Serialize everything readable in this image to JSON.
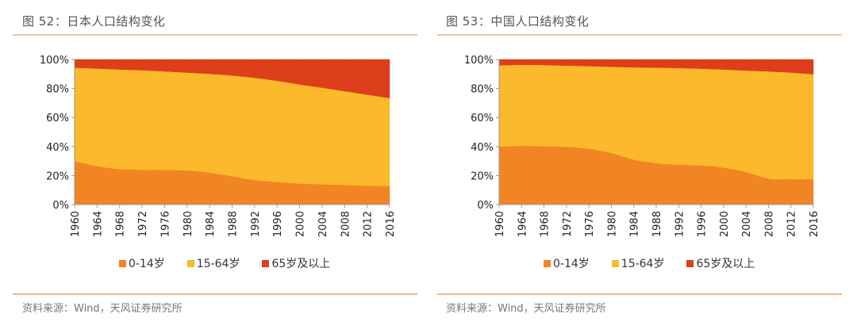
{
  "panels": [
    {
      "title": "图 52：日本人口结构变化",
      "source": "资料来源：Wind，天风证券研究所",
      "legend": [
        {
          "label": "0-14岁",
          "color": "#f18523"
        },
        {
          "label": "15-64岁",
          "color": "#fbb92b"
        },
        {
          "label": "65岁及以上",
          "color": "#dc3f1a"
        }
      ]
    },
    {
      "title": "图 53：中国人口结构变化",
      "source": "资料来源：Wind，天风证券研究所",
      "legend": [
        {
          "label": "0-14岁",
          "color": "#f18523"
        },
        {
          "label": "15-64岁",
          "color": "#fbb92b"
        },
        {
          "label": "65岁及以上",
          "color": "#dc3f1a"
        }
      ]
    }
  ],
  "chart_data": [
    {
      "type": "area",
      "stacked": true,
      "normalized": true,
      "title": "图 52：日本人口结构变化",
      "xlabel": "",
      "ylabel": "",
      "ylim": [
        0,
        100
      ],
      "yticks": [
        "0%",
        "20%",
        "40%",
        "60%",
        "80%",
        "100%"
      ],
      "x": [
        1960,
        1964,
        1968,
        1972,
        1976,
        1980,
        1984,
        1988,
        1992,
        1996,
        2000,
        2004,
        2008,
        2012,
        2016
      ],
      "legend_position": "bottom",
      "grid": false,
      "series": [
        {
          "name": "0-14岁",
          "color": "#f18523",
          "values": [
            30,
            26.5,
            24.5,
            24,
            24,
            23.5,
            22,
            19.5,
            17,
            15.5,
            14.5,
            14,
            13.5,
            13,
            12.8
          ]
        },
        {
          "name": "15-64岁",
          "color": "#fbb92b",
          "values": [
            64.3,
            67.3,
            68.6,
            68.6,
            67.8,
            67.5,
            68.1,
            69.5,
            70.4,
            69.8,
            68.3,
            66.6,
            64.7,
            62.8,
            60.6
          ]
        },
        {
          "name": "65岁及以上",
          "color": "#dc3f1a",
          "values": [
            5.7,
            6.2,
            6.9,
            7.4,
            8.2,
            9.0,
            9.9,
            11.0,
            12.6,
            14.7,
            17.2,
            19.4,
            21.8,
            24.2,
            26.6
          ]
        }
      ]
    },
    {
      "type": "area",
      "stacked": true,
      "normalized": true,
      "title": "图 53：中国人口结构变化",
      "xlabel": "",
      "ylabel": "",
      "ylim": [
        0,
        100
      ],
      "yticks": [
        "0%",
        "20%",
        "40%",
        "60%",
        "80%",
        "100%"
      ],
      "x": [
        1960,
        1964,
        1968,
        1972,
        1976,
        1980,
        1984,
        1988,
        1992,
        1996,
        2000,
        2004,
        2008,
        2012,
        2016
      ],
      "legend_position": "bottom",
      "grid": false,
      "series": [
        {
          "name": "0-14岁",
          "color": "#f18523",
          "values": [
            40,
            40.5,
            40.2,
            39.8,
            38.5,
            35.5,
            31,
            28.5,
            27.5,
            27,
            25.5,
            22.5,
            18,
            17.5,
            17.5
          ]
        },
        {
          "name": "15-64岁",
          "color": "#fbb92b",
          "values": [
            56,
            55.8,
            56,
            56,
            56.9,
            59.5,
            63.6,
            65.9,
            66.6,
            66.7,
            67.6,
            69.9,
            73.8,
            73.5,
            72.3
          ]
        },
        {
          "name": "65岁及以上",
          "color": "#dc3f1a",
          "values": [
            4,
            3.7,
            3.8,
            4.2,
            4.6,
            5.0,
            5.4,
            5.6,
            5.9,
            6.3,
            6.9,
            7.6,
            8.2,
            9.0,
            10.2
          ]
        }
      ]
    }
  ]
}
